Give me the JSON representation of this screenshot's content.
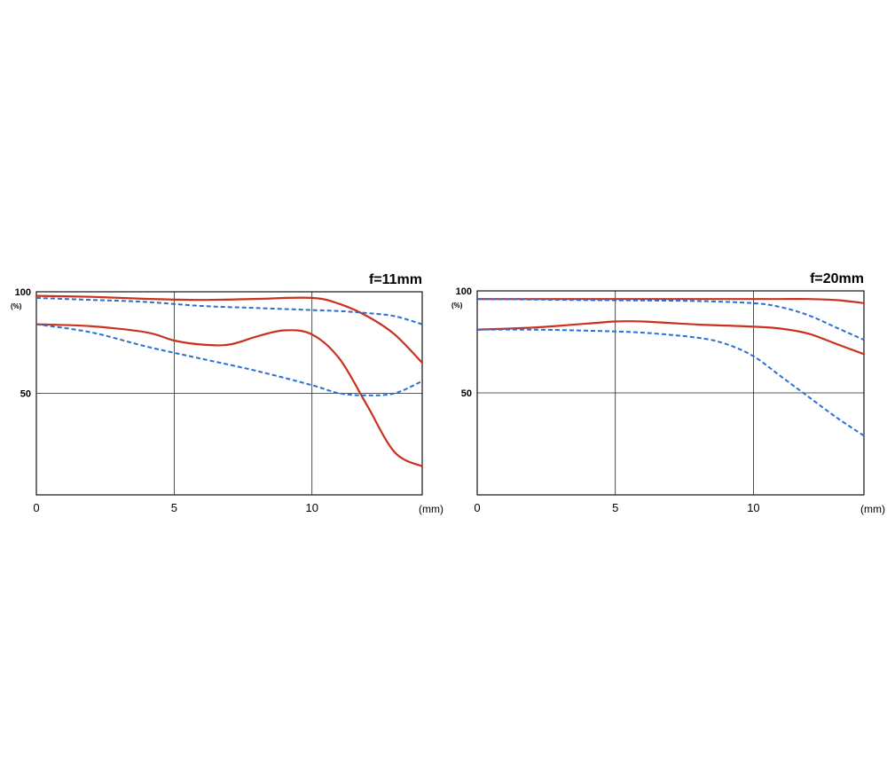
{
  "chart_data": [
    {
      "type": "line",
      "title": "f=11mm",
      "x_unit": "(mm)",
      "y_unit": "(%)",
      "xlim": [
        0,
        14
      ],
      "ylim": [
        0,
        100
      ],
      "x_ticks": [
        "0",
        "5",
        "10"
      ],
      "x_tick_values": [
        0,
        5,
        10
      ],
      "y_ticks": [
        "100",
        "50"
      ],
      "y_tick_values": [
        100,
        50
      ],
      "grid": true,
      "series": [
        {
          "color": "#c8321e",
          "style": "solid",
          "x": [
            0,
            2,
            4,
            6,
            8,
            10,
            11,
            12,
            13,
            14
          ],
          "y": [
            98,
            97.5,
            96.5,
            96,
            96.5,
            97,
            94,
            88,
            79,
            65
          ]
        },
        {
          "color": "#2a6fd4",
          "style": "dashed",
          "x": [
            0,
            2,
            4,
            6,
            8,
            10,
            11,
            12,
            13,
            14
          ],
          "y": [
            97,
            96,
            95,
            93,
            92,
            91,
            90.5,
            89.5,
            88,
            84
          ]
        },
        {
          "color": "#c8321e",
          "style": "solid",
          "x": [
            0,
            2,
            4,
            5,
            6,
            7,
            8,
            9,
            10,
            11,
            12,
            13,
            14
          ],
          "y": [
            84,
            83,
            80,
            76,
            74,
            74,
            78,
            81,
            79,
            67,
            44,
            21,
            14
          ]
        },
        {
          "color": "#2a6fd4",
          "style": "dashed",
          "x": [
            0,
            2,
            4,
            6,
            8,
            10,
            11,
            12,
            13,
            14
          ],
          "y": [
            84,
            80,
            73,
            67,
            61,
            54,
            50,
            49,
            50,
            56
          ]
        }
      ]
    },
    {
      "type": "line",
      "title": "f=20mm",
      "x_unit": "(mm)",
      "y_unit": "(%)",
      "xlim": [
        0,
        14
      ],
      "ylim": [
        0,
        100
      ],
      "x_ticks": [
        "0",
        "5",
        "10"
      ],
      "x_tick_values": [
        0,
        5,
        10
      ],
      "y_ticks": [
        "100",
        "50"
      ],
      "y_tick_values": [
        100,
        50
      ],
      "grid": true,
      "series": [
        {
          "color": "#c8321e",
          "style": "solid",
          "x": [
            0,
            2,
            4,
            6,
            8,
            10,
            11,
            12,
            13,
            14
          ],
          "y": [
            96,
            96,
            96,
            96,
            96,
            96,
            96,
            96,
            95.5,
            94
          ]
        },
        {
          "color": "#2a6fd4",
          "style": "dashed",
          "x": [
            0,
            2,
            4,
            6,
            8,
            10,
            11,
            12,
            13,
            14
          ],
          "y": [
            96,
            95.8,
            95.5,
            95.3,
            95,
            94,
            92,
            88,
            82,
            76
          ]
        },
        {
          "color": "#c8321e",
          "style": "solid",
          "x": [
            0,
            2,
            4,
            5,
            6,
            8,
            10,
            11,
            12,
            13,
            14
          ],
          "y": [
            81,
            82,
            84,
            85,
            85,
            83.5,
            82.5,
            81.5,
            79,
            74,
            69
          ]
        },
        {
          "color": "#2a6fd4",
          "style": "dashed",
          "x": [
            0,
            2,
            4,
            6,
            8,
            9,
            10,
            11,
            12,
            13,
            14
          ],
          "y": [
            81,
            81,
            80.5,
            79.5,
            77,
            74,
            68,
            58,
            48,
            38,
            29
          ]
        }
      ]
    }
  ]
}
